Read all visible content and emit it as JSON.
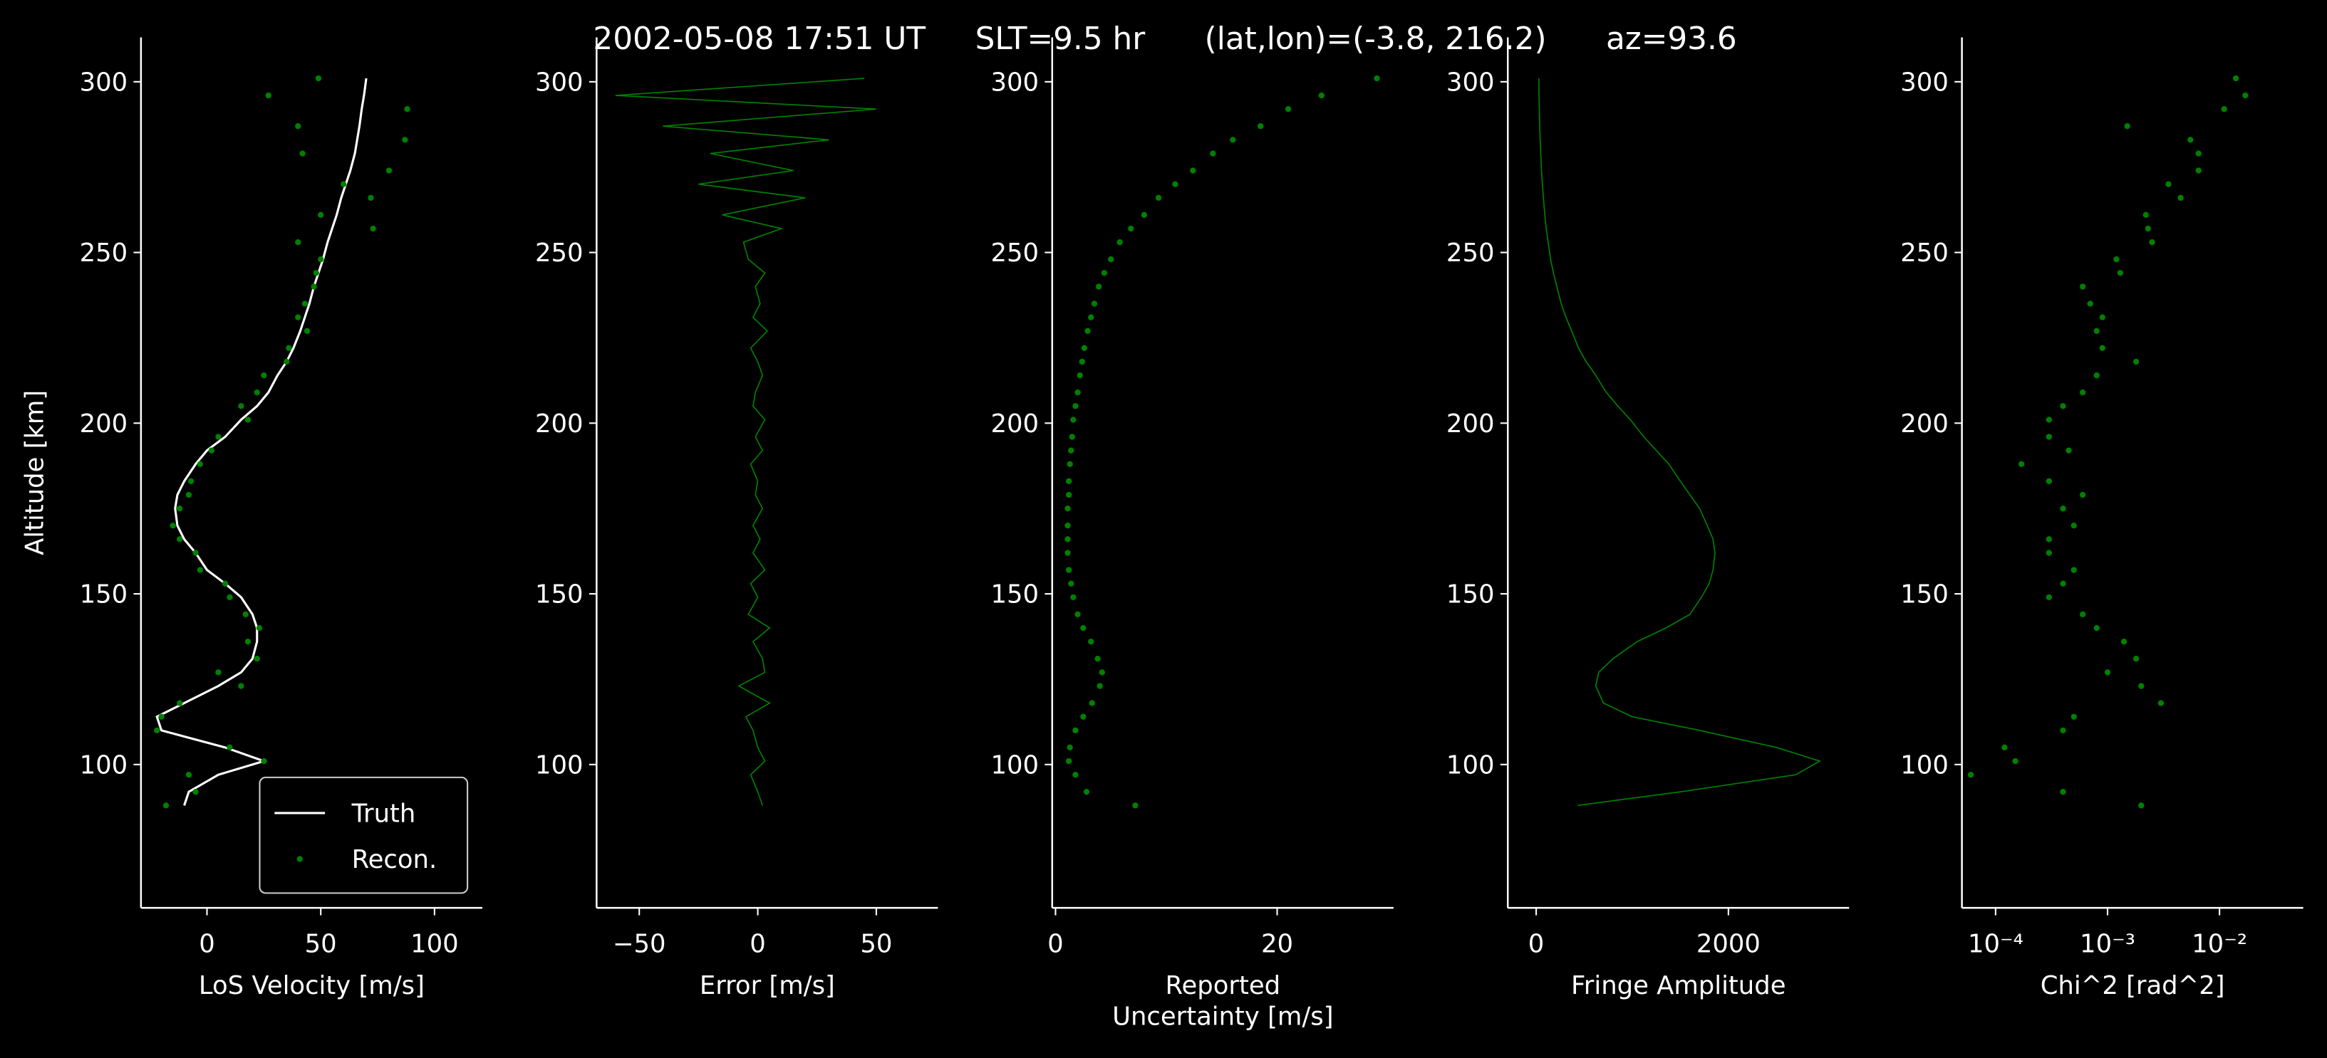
{
  "title": "2002-05-08 17:51 UT     SLT=9.5 hr      (lat,lon)=(-3.8, 216.2)      az=93.6",
  "chart_data": [
    {
      "type": "line",
      "xlabel": [
        "LoS Velocity [m/s]"
      ],
      "ylabel": "Altitude [km]",
      "xlim": [
        -29,
        121
      ],
      "xticks": [
        0,
        50,
        100
      ],
      "ylim": [
        58,
        313
      ],
      "yticks": [
        100,
        150,
        200,
        250,
        300
      ],
      "legend": "lower right",
      "series": [
        {
          "name": "Truth",
          "type": "line",
          "color": "#ffffff",
          "y": [
            88,
            92,
            97,
            101,
            105,
            110,
            114,
            118,
            123,
            127,
            131,
            136,
            140,
            144,
            149,
            153,
            157,
            162,
            166,
            170,
            175,
            179,
            183,
            188,
            192,
            196,
            201,
            205,
            209,
            214,
            218,
            222,
            227,
            231,
            235,
            240,
            244,
            248,
            253,
            257,
            261,
            266,
            270,
            274,
            279,
            283,
            287,
            292,
            296,
            301
          ],
          "x": [
            -10,
            -8,
            5,
            25,
            8,
            -20,
            -22,
            -10,
            5,
            15,
            20,
            22,
            22,
            20,
            15,
            8,
            0,
            -5,
            -10,
            -13,
            -14,
            -13,
            -10,
            -5,
            0,
            8,
            15,
            22,
            27,
            31,
            35,
            38,
            41,
            43,
            45,
            47,
            49,
            51,
            53,
            55,
            57,
            59,
            61,
            63,
            65,
            66,
            67,
            68,
            69,
            70
          ]
        },
        {
          "name": "Recon.",
          "type": "scatter",
          "color": "#008000",
          "y": [
            88,
            92,
            97,
            101,
            105,
            110,
            114,
            118,
            123,
            127,
            131,
            136,
            140,
            144,
            149,
            153,
            157,
            162,
            166,
            170,
            175,
            179,
            183,
            188,
            192,
            196,
            201,
            205,
            209,
            214,
            218,
            222,
            227,
            231,
            235,
            240,
            244,
            248,
            253,
            257,
            261,
            266,
            270,
            274,
            279,
            283,
            287,
            292,
            296,
            301
          ],
          "x": [
            -18,
            -5,
            -8,
            25,
            10,
            -22,
            -20,
            -12,
            15,
            5,
            22,
            18,
            23,
            17,
            10,
            8,
            -3,
            -5,
            -12,
            -15,
            -12,
            -8,
            -7,
            -3,
            2,
            5,
            18,
            15,
            22,
            25,
            35,
            36,
            44,
            40,
            43,
            47,
            48,
            50,
            40,
            73,
            50,
            72,
            60,
            80,
            42,
            87,
            40,
            88,
            27,
            49
          ]
        }
      ]
    },
    {
      "type": "line",
      "xlabel": [
        "Error [m/s]"
      ],
      "xlim": [
        -68,
        76
      ],
      "xticks": [
        {
          "value": -50,
          "label": "−50"
        },
        0,
        50
      ],
      "ylim": [
        58,
        313
      ],
      "yticks": [
        100,
        150,
        200,
        250,
        300
      ],
      "series": [
        {
          "type": "line",
          "color": "#008000",
          "y": [
            88,
            92,
            97,
            101,
            105,
            110,
            114,
            118,
            123,
            127,
            131,
            136,
            140,
            144,
            149,
            153,
            157,
            162,
            166,
            170,
            175,
            179,
            183,
            188,
            192,
            196,
            201,
            205,
            209,
            214,
            218,
            222,
            227,
            231,
            235,
            240,
            244,
            248,
            253,
            257,
            261,
            266,
            270,
            274,
            279,
            283,
            287,
            292,
            296,
            301
          ],
          "x": [
            2,
            0,
            -3,
            3,
            0,
            -2,
            -5,
            5,
            -8,
            3,
            2,
            -2,
            5,
            -4,
            0,
            -3,
            3,
            -2,
            1,
            -2,
            2,
            -1,
            0,
            -3,
            2,
            -1,
            3,
            -2,
            -1,
            2,
            0,
            -3,
            4,
            -2,
            1,
            -1,
            3,
            -4,
            -6,
            10,
            -15,
            20,
            -25,
            15,
            -20,
            30,
            -40,
            50,
            -60,
            45
          ]
        }
      ]
    },
    {
      "type": "scatter",
      "xlabel": [
        "Reported",
        "Uncertainty [m/s]"
      ],
      "xlim": [
        -0.3,
        30.5
      ],
      "xticks": [
        0,
        20
      ],
      "ylim": [
        58,
        313
      ],
      "yticks": [
        100,
        150,
        200,
        250,
        300
      ],
      "series": [
        {
          "type": "scatter",
          "color": "#008000",
          "y": [
            88,
            92,
            97,
            101,
            105,
            110,
            114,
            118,
            123,
            127,
            131,
            136,
            140,
            144,
            149,
            153,
            157,
            162,
            166,
            170,
            175,
            179,
            183,
            188,
            192,
            196,
            201,
            205,
            209,
            214,
            218,
            222,
            227,
            231,
            235,
            240,
            244,
            248,
            253,
            257,
            261,
            266,
            270,
            274,
            279,
            283,
            287,
            292,
            296,
            301
          ],
          "x": [
            7.2,
            2.8,
            1.8,
            1.2,
            1.3,
            1.8,
            2.5,
            3.3,
            4.0,
            4.2,
            3.8,
            3.2,
            2.5,
            2.0,
            1.6,
            1.4,
            1.2,
            1.1,
            1.1,
            1.1,
            1.1,
            1.2,
            1.2,
            1.3,
            1.4,
            1.5,
            1.6,
            1.8,
            2.0,
            2.2,
            2.4,
            2.6,
            2.9,
            3.2,
            3.5,
            3.9,
            4.4,
            5.0,
            5.8,
            6.8,
            8.0,
            9.3,
            10.8,
            12.4,
            14.2,
            16.0,
            18.5,
            21.0,
            24.0,
            29.0
          ]
        }
      ]
    },
    {
      "type": "line",
      "xlabel": [
        "Fringe Amplitude"
      ],
      "xlim": [
        -295,
        3256
      ],
      "xticks": [
        0,
        2000
      ],
      "ylim": [
        58,
        313
      ],
      "yticks": [
        100,
        150,
        200,
        250,
        300
      ],
      "series": [
        {
          "type": "line",
          "color": "#008000",
          "y": [
            88,
            92,
            97,
            101,
            105,
            110,
            114,
            118,
            123,
            127,
            131,
            136,
            140,
            144,
            149,
            153,
            157,
            162,
            166,
            170,
            175,
            179,
            183,
            188,
            192,
            196,
            201,
            205,
            209,
            214,
            218,
            222,
            227,
            231,
            235,
            240,
            244,
            248,
            253,
            257,
            261,
            266,
            270,
            274,
            279,
            283,
            287,
            292,
            296,
            301
          ],
          "x": [
            430,
            1500,
            2700,
            2950,
            2500,
            1700,
            1000,
            700,
            620,
            650,
            800,
            1050,
            1350,
            1600,
            1720,
            1800,
            1840,
            1860,
            1840,
            1780,
            1700,
            1600,
            1500,
            1380,
            1250,
            1120,
            980,
            850,
            730,
            620,
            520,
            440,
            370,
            310,
            260,
            215,
            180,
            150,
            125,
            105,
            90,
            75,
            65,
            55,
            48,
            42,
            37,
            33,
            30,
            28
          ]
        }
      ]
    },
    {
      "type": "scatter",
      "xlabel": [
        "Chi^2 [rad^2]"
      ],
      "xlog": true,
      "xlim": [
        5e-05,
        0.056
      ],
      "xticks": [
        {
          "value": 0.0001,
          "label": "10⁻⁴"
        },
        {
          "value": 0.001,
          "label": "10⁻³"
        },
        {
          "value": 0.01,
          "label": "10⁻²"
        }
      ],
      "ylim": [
        58,
        313
      ],
      "yticks": [
        100,
        150,
        200,
        250,
        300
      ],
      "series": [
        {
          "type": "scatter",
          "color": "#008000",
          "y": [
            88,
            92,
            97,
            101,
            105,
            110,
            114,
            118,
            123,
            127,
            131,
            136,
            140,
            144,
            149,
            153,
            157,
            162,
            166,
            170,
            175,
            179,
            183,
            188,
            192,
            196,
            201,
            205,
            209,
            214,
            218,
            222,
            227,
            231,
            235,
            240,
            244,
            248,
            253,
            257,
            261,
            266,
            270,
            274,
            279,
            283,
            287,
            292,
            296,
            301
          ],
          "x": [
            0.002,
            0.0004,
            6e-05,
            0.00015,
            0.00012,
            0.0004,
            0.0005,
            0.003,
            0.002,
            0.001,
            0.0018,
            0.0014,
            0.0008,
            0.0006,
            0.0003,
            0.0004,
            0.0005,
            0.0003,
            0.0003,
            0.0005,
            0.0004,
            0.0006,
            0.0003,
            0.00017,
            0.00045,
            0.0003,
            0.0003,
            0.0004,
            0.0006,
            0.0008,
            0.0018,
            0.0009,
            0.0008,
            0.0009,
            0.0007,
            0.0006,
            0.0013,
            0.0012,
            0.0025,
            0.0023,
            0.0022,
            0.0045,
            0.0035,
            0.0065,
            0.0065,
            0.0055,
            0.0015,
            0.011,
            0.017,
            0.014
          ]
        }
      ]
    }
  ]
}
